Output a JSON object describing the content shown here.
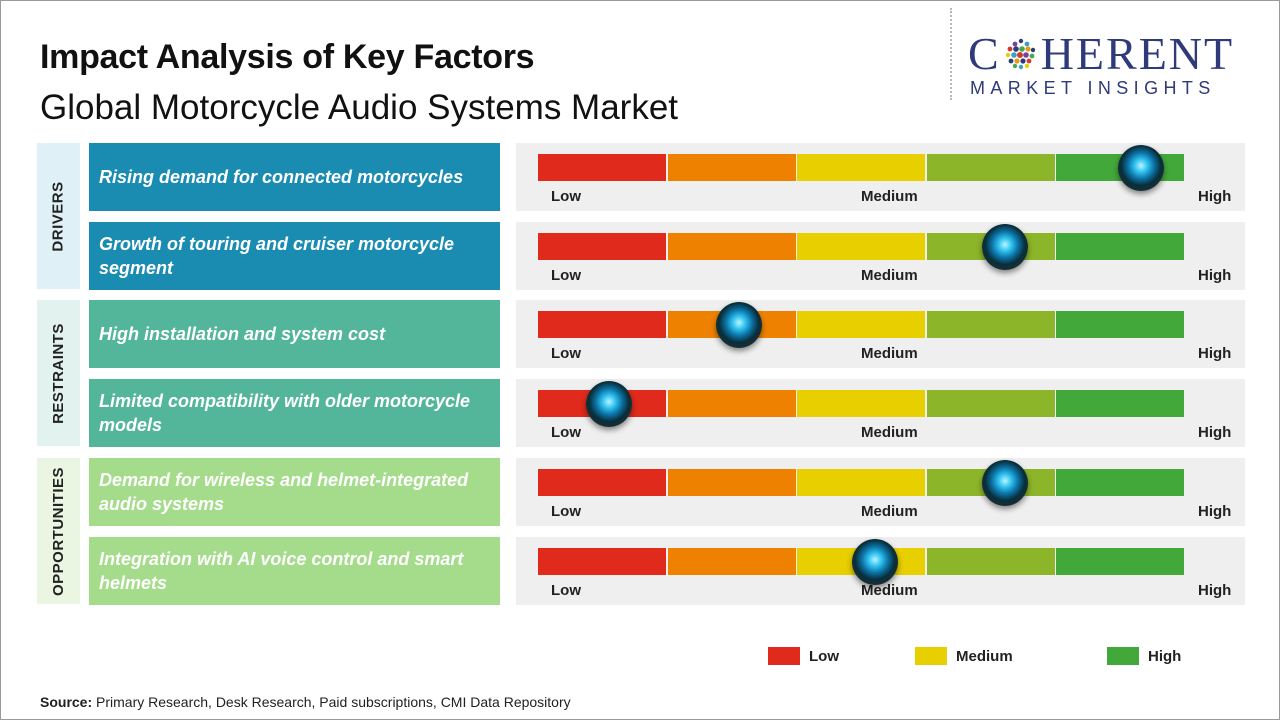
{
  "header": {
    "title": "Impact Analysis of Key Factors",
    "subtitle": "Global Motorcycle Audio Systems Market"
  },
  "logo": {
    "word_start": "C",
    "word_end": "HERENT",
    "tagline": "MARKET INSIGHTS"
  },
  "categories": [
    {
      "label": "DRIVERS",
      "bg": "#dff1f7"
    },
    {
      "label": "RESTRAINTS",
      "bg": "#e2f2ee"
    },
    {
      "label": "OPPORTUNITIES",
      "bg": "#eaf6e2"
    }
  ],
  "scale": {
    "low": "Low",
    "medium": "Medium",
    "high": "High",
    "segment_colors": [
      "#e02a1b",
      "#ee8200",
      "#e8cf00",
      "#8db52a",
      "#43a83a"
    ]
  },
  "legend": [
    {
      "label": "Low",
      "color": "#e02a1b"
    },
    {
      "label": "Medium",
      "color": "#e8cf00"
    },
    {
      "label": "High",
      "color": "#43a83a"
    }
  ],
  "source": {
    "label": "Source:",
    "text": "Primary Research, Desk Research, Paid subscriptions, CMI Data Repository"
  },
  "chart_data": {
    "type": "table",
    "title": "Impact Analysis of Key Factors",
    "subtitle": "Global Motorcycle Audio Systems Market",
    "scale_labels": [
      "Low",
      "Medium",
      "High"
    ],
    "value_range": [
      0,
      1
    ],
    "rows": [
      {
        "category": "DRIVERS",
        "factor": "Rising demand for connected motorcycles",
        "impact": 0.93,
        "color": "#1a8bb1"
      },
      {
        "category": "DRIVERS",
        "factor": "Growth of touring and cruiser motorcycle segment",
        "impact": 0.72,
        "color": "#1a8bb1"
      },
      {
        "category": "RESTRAINTS",
        "factor": "High installation and system cost",
        "impact": 0.31,
        "color": "#53b59a"
      },
      {
        "category": "RESTRAINTS",
        "factor": "Limited compatibility with older motorcycle models",
        "impact": 0.11,
        "color": "#53b59a"
      },
      {
        "category": "OPPORTUNITIES",
        "factor": "Demand for wireless and helmet-integrated audio systems",
        "impact": 0.72,
        "color": "#a5dc8b"
      },
      {
        "category": "OPPORTUNITIES",
        "factor": "Integration with AI voice control and smart helmets",
        "impact": 0.52,
        "color": "#a5dc8b"
      }
    ]
  }
}
